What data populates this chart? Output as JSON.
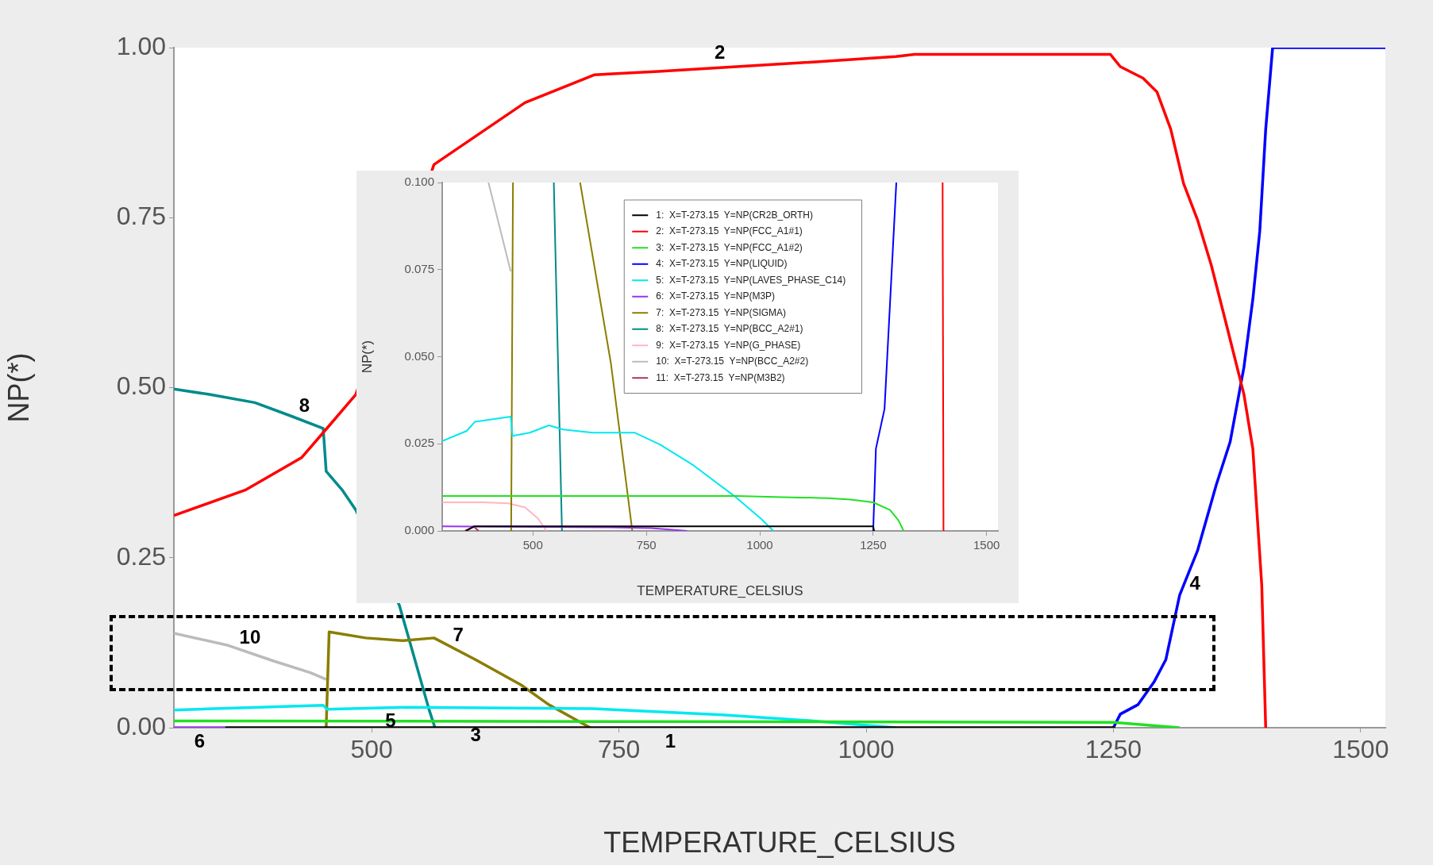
{
  "chart_data": [
    {
      "type": "line",
      "xlabel": "TEMPERATURE_CELSIUS",
      "ylabel": "NP(*)",
      "xlim": [
        300,
        1525
      ],
      "xticks": [
        500,
        750,
        1000,
        1250,
        1500
      ],
      "ylim": [
        0,
        1
      ],
      "yticks": [
        {
          "value": 0,
          "label": "0.00"
        },
        {
          "value": 0.25,
          "label": "0.25"
        },
        {
          "value": 0.5,
          "label": "0.50"
        },
        {
          "value": 0.75,
          "label": "0.75"
        },
        {
          "value": 1,
          "label": "1.00"
        }
      ],
      "grid": false,
      "legend": false,
      "marker": "none",
      "series": [
        {
          "name": "1",
          "color": "#000000",
          "x": [
            352,
            1252
          ],
          "values": [
            0,
            0
          ]
        },
        {
          "name": "2",
          "color": "#ff0000",
          "x": [
            300,
            373,
            429,
            457,
            484,
            563,
            655,
            725,
            790,
            938,
            1030,
            1049,
            1247,
            1257,
            1280,
            1294,
            1308,
            1321,
            1335,
            1349,
            1363,
            1382,
            1391,
            1400,
            1404
          ],
          "values": [
            0.312,
            0.35,
            0.397,
            0.444,
            0.49,
            0.828,
            0.919,
            0.96,
            0.965,
            0.978,
            0.987,
            0.99,
            0.99,
            0.972,
            0.955,
            0.935,
            0.88,
            0.8,
            0.747,
            0.68,
            0.6,
            0.49,
            0.41,
            0.21,
            0
          ]
        },
        {
          "name": "3",
          "color": "#22e022",
          "x": [
            300,
            1250,
            1317
          ],
          "values": [
            0.01,
            0.008,
            0
          ]
        },
        {
          "name": "4",
          "color": "#0000ff",
          "x": [
            1250,
            1257,
            1275,
            1291,
            1303,
            1317,
            1335,
            1354,
            1368,
            1382,
            1391,
            1398,
            1404,
            1411,
            1525
          ],
          "values": [
            0,
            0.02,
            0.034,
            0.067,
            0.1,
            0.195,
            0.26,
            0.357,
            0.42,
            0.53,
            0.63,
            0.73,
            0.88,
            1,
            1
          ]
        },
        {
          "name": "5",
          "color": "#00e8f0",
          "x": [
            300,
            451,
            455,
            535,
            724,
            854,
            947,
            1030
          ],
          "values": [
            0.026,
            0.033,
            0.027,
            0.03,
            0.028,
            0.019,
            0.01,
            0
          ]
        },
        {
          "name": "6",
          "color": "#9933ee",
          "x": [
            300,
            352
          ],
          "values": [
            0,
            0
          ]
        },
        {
          "name": "7",
          "color": "#8b7d00",
          "x": [
            454,
            457,
            494,
            531,
            563,
            605,
            651,
            679,
            721
          ],
          "values": [
            0,
            0.141,
            0.132,
            0.128,
            0.132,
            0.1,
            0.063,
            0.034,
            0
          ]
        },
        {
          "name": "8",
          "color": "#008b8b",
          "x": [
            300,
            336,
            382,
            419,
            451,
            454,
            470,
            484,
            528,
            558,
            564
          ],
          "values": [
            0.498,
            0.49,
            0.478,
            0.458,
            0.44,
            0.377,
            0.35,
            0.32,
            0.18,
            0.027,
            0
          ]
        },
        {
          "name": "10",
          "color": "#bbbbbb",
          "x": [
            300,
            355,
            401,
            438,
            454
          ],
          "values": [
            0.139,
            0.121,
            0.098,
            0.081,
            0.071
          ]
        }
      ]
    },
    {
      "type": "line",
      "xlabel": "TEMPERATURE_CELSIUS",
      "ylabel": "NP(*)",
      "xlim": [
        300,
        1525
      ],
      "xticks": [
        500,
        750,
        1000,
        1250,
        1500
      ],
      "ylim": [
        0,
        0.1
      ],
      "yticks": [
        {
          "value": 0,
          "label": "0.000"
        },
        {
          "value": 0.025,
          "label": "0.025"
        },
        {
          "value": 0.05,
          "label": "0.050"
        },
        {
          "value": 0.075,
          "label": "0.075"
        },
        {
          "value": 0.1,
          "label": "0.100"
        }
      ],
      "grid": false,
      "legend": "top right",
      "marker": "none",
      "series": [
        {
          "name": "1:  X=T-273.15  Y=NP(CR2B_ORTH)",
          "color": "#000000",
          "x": [
            352,
            370,
            1250,
            1252
          ],
          "values": [
            0,
            0.0013,
            0.0013,
            0
          ]
        },
        {
          "name": "2:  X=T-273.15  Y=NP(FCC_A1#1)",
          "color": "#ff0000",
          "x": [
            1403,
            1405
          ],
          "values": [
            0.1,
            0
          ]
        },
        {
          "name": "3:  X=T-273.15  Y=NP(FCC_A1#2)",
          "color": "#22e022",
          "x": [
            300,
            950,
            1050,
            1150,
            1200,
            1250,
            1287,
            1306,
            1317
          ],
          "values": [
            0.01,
            0.01,
            0.0097,
            0.0094,
            0.009,
            0.0082,
            0.006,
            0.003,
            0
          ]
        },
        {
          "name": "4:  X=T-273.15  Y=NP(LIQUID)",
          "color": "#0000ff",
          "x": [
            1250,
            1256,
            1275,
            1301
          ],
          "values": [
            0,
            0.0236,
            0.035,
            0.1
          ]
        },
        {
          "name": "5:  X=T-273.15  Y=NP(LAVES_PHASE_C14)",
          "color": "#00e8f0",
          "x": [
            300,
            354,
            372,
            451,
            455,
            493,
            535,
            567,
            632,
            724,
            780,
            854,
            947,
            1002,
            1030
          ],
          "values": [
            0.0258,
            0.0287,
            0.0313,
            0.0328,
            0.0273,
            0.0282,
            0.0303,
            0.0291,
            0.0282,
            0.0282,
            0.0248,
            0.0188,
            0.0097,
            0.0036,
            0
          ]
        },
        {
          "name": "6:  X=T-273.15  Y=NP(M3P)",
          "color": "#9933ee",
          "x": [
            300,
            669,
            761,
            840
          ],
          "values": [
            0.0013,
            0.001,
            0.0008,
            0
          ]
        },
        {
          "name": "7:  X=T-273.15  Y=NP(SIGMA)",
          "color": "#8b7d00",
          "x": [
            452,
            456,
            530,
            604,
            672,
            719
          ],
          "values": [
            0,
            0.1,
            null,
            0.1,
            0.048,
            0
          ]
        },
        {
          "name": "8:  X=T-273.15  Y=NP(BCC_A2#1)",
          "color": "#008b8b",
          "x": [
            546,
            564
          ],
          "values": [
            0.1,
            0
          ]
        },
        {
          "name": "9:  X=T-273.15  Y=NP(G_PHASE)",
          "color": "#ffb6c1",
          "x": [
            300,
            391,
            446,
            483,
            511,
            530
          ],
          "values": [
            0.0082,
            0.0082,
            0.0079,
            0.0067,
            0.0036,
            0
          ]
        },
        {
          "name": "10:  X=T-273.15  Y=NP(BCC_A2#2)",
          "color": "#bbbbbb",
          "x": [
            402,
            451
          ],
          "values": [
            0.1,
            0.0745
          ]
        },
        {
          "name": "11:  X=T-273.15  Y=NP(M3B2)",
          "color": "#b03060",
          "x": [
            350,
            370,
            380
          ],
          "values": [
            0,
            0.0012,
            0
          ]
        }
      ]
    }
  ]
}
